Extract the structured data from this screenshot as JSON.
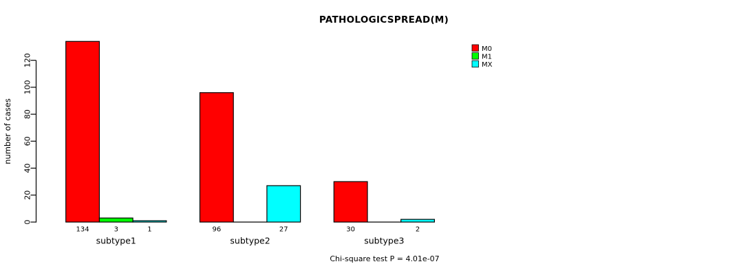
{
  "chart_data": {
    "type": "bar",
    "title": "PATHOLOGICSPREAD(M)",
    "ylabel": "number of cases",
    "xlabel": "",
    "categories": [
      "subtype1",
      "subtype2",
      "subtype3"
    ],
    "series": [
      {
        "name": "M0",
        "color": "#FF0000",
        "values": [
          134,
          96,
          30
        ]
      },
      {
        "name": "M1",
        "color": "#00FF00",
        "values": [
          3,
          0,
          0
        ]
      },
      {
        "name": "MX",
        "color": "#00FFFF",
        "values": [
          1,
          27,
          2
        ]
      }
    ],
    "bar_value_labels": [
      [
        "134",
        "3",
        "1"
      ],
      [
        "96",
        "",
        "27"
      ],
      [
        "30",
        "",
        "2"
      ]
    ],
    "yticks": [
      0,
      20,
      40,
      60,
      80,
      100,
      120
    ],
    "ylim": [
      0,
      134
    ],
    "grid": false,
    "bar_outline_color": "#000000",
    "legend_position": "top-right",
    "legend": [
      "M0",
      "M1",
      "MX"
    ],
    "annotation": "Chi-square test P = 4.01e-07"
  }
}
